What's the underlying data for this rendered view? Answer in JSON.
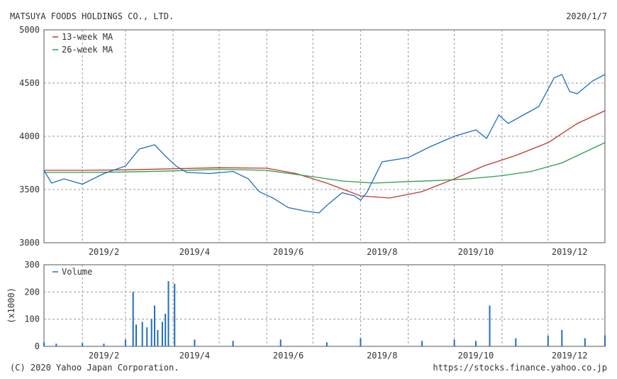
{
  "header": {
    "company": "MATSUYA FOODS HOLDINGS CO., LTD.",
    "date": "2020/1/7"
  },
  "footer": {
    "copyright": "(C) 2020 Yahoo Japan Corporation.",
    "source": "https://stocks.finance.yahoo.co.jp"
  },
  "colors": {
    "price": "#1f6fc0",
    "ma13": "#c0392b",
    "ma26": "#2e9e4f",
    "volume": "#1f6fc0",
    "grid": "#9a9a9a",
    "frame": "#555555"
  },
  "chart_data": [
    {
      "type": "line",
      "x_ticks": [
        "2019/2",
        "2019/4",
        "2019/6",
        "2019/8",
        "2019/10",
        "2019/12"
      ],
      "ylim": [
        3000,
        5000
      ],
      "y_ticks": [
        "5000",
        "4500",
        "4000",
        "3500",
        "3000"
      ],
      "grid": true,
      "legend_position": "top-left",
      "series": [
        {
          "name": "13-week MA",
          "x": [
            "2019/1/7",
            "2019/2/1",
            "2019/3/1",
            "2019/4/1",
            "2019/5/1",
            "2019/6/1",
            "2019/6/20",
            "2019/7/10",
            "2019/8/1",
            "2019/8/20",
            "2019/9/10",
            "2019/10/1",
            "2019/10/20",
            "2019/11/10",
            "2019/12/1",
            "2019/12/20",
            "2020/1/7"
          ],
          "values": [
            3680,
            3680,
            3685,
            3695,
            3705,
            3700,
            3650,
            3560,
            3440,
            3420,
            3480,
            3600,
            3720,
            3820,
            3940,
            4120,
            4240
          ]
        },
        {
          "name": "26-week MA",
          "x": [
            "2019/1/7",
            "2019/2/1",
            "2019/3/1",
            "2019/4/1",
            "2019/5/1",
            "2019/6/1",
            "2019/7/1",
            "2019/7/20",
            "2019/8/10",
            "2019/9/1",
            "2019/9/20",
            "2019/10/10",
            "2019/11/1",
            "2019/11/20",
            "2019/12/10",
            "2020/1/1",
            "2020/1/7"
          ],
          "values": [
            3660,
            3660,
            3665,
            3675,
            3690,
            3680,
            3620,
            3580,
            3560,
            3575,
            3585,
            3600,
            3630,
            3670,
            3750,
            3900,
            3940
          ]
        },
        {
          "x": [
            "2019/1/7",
            "2019/1/12",
            "2019/1/20",
            "2019/2/1",
            "2019/2/15",
            "2019/3/1",
            "2019/3/10",
            "2019/3/20",
            "2019/3/28",
            "2019/4/3",
            "2019/4/10",
            "2019/4/25",
            "2019/5/10",
            "2019/5/20",
            "2019/5/27",
            "2019/6/5",
            "2019/6/15",
            "2019/6/25",
            "2019/7/5",
            "2019/7/10",
            "2019/7/20",
            "2019/7/28",
            "2019/8/1",
            "2019/8/5",
            "2019/8/15",
            "2019/9/1",
            "2019/9/15",
            "2019/10/1",
            "2019/10/15",
            "2019/10/22",
            "2019/10/30",
            "2019/11/5",
            "2019/11/15",
            "2019/11/25",
            "2019/12/5",
            "2019/12/10",
            "2019/12/15",
            "2019/12/20",
            "2019/12/30",
            "2020/1/7"
          ],
          "values": [
            3680,
            3560,
            3600,
            3550,
            3650,
            3720,
            3880,
            3920,
            3800,
            3720,
            3660,
            3650,
            3670,
            3600,
            3480,
            3420,
            3330,
            3300,
            3280,
            3350,
            3470,
            3440,
            3400,
            3470,
            3760,
            3800,
            3900,
            4000,
            4060,
            3980,
            4200,
            4120,
            4200,
            4280,
            4550,
            4580,
            4420,
            4400,
            4520,
            4580
          ]
        }
      ]
    },
    {
      "type": "bar",
      "x_ticks": [
        "2019/2",
        "2019/4",
        "2019/6",
        "2019/8",
        "2019/10",
        "2019/12"
      ],
      "ylim": [
        0,
        300
      ],
      "y_ticks": [
        "300",
        "200",
        "100",
        "0"
      ],
      "ylabel": "(x1000)",
      "grid": true,
      "legend_position": "top-left",
      "series": [
        {
          "name": "Volume",
          "x": [
            "2019/1/7",
            "2019/1/15",
            "2019/2/1",
            "2019/2/15",
            "2019/3/1",
            "2019/3/6",
            "2019/3/8",
            "2019/3/12",
            "2019/3/15",
            "2019/3/18",
            "2019/3/20",
            "2019/3/22",
            "2019/3/25",
            "2019/3/27",
            "2019/3/29",
            "2019/4/2",
            "2019/4/15",
            "2019/5/10",
            "2019/6/10",
            "2019/7/10",
            "2019/8/1",
            "2019/9/10",
            "2019/10/1",
            "2019/10/15",
            "2019/10/24",
            "2019/11/10",
            "2019/12/1",
            "2019/12/10",
            "2019/12/25",
            "2020/1/7"
          ],
          "values": [
            15,
            10,
            12,
            10,
            25,
            200,
            80,
            90,
            70,
            100,
            150,
            60,
            90,
            120,
            240,
            230,
            25,
            20,
            25,
            15,
            30,
            20,
            25,
            20,
            150,
            30,
            40,
            60,
            30,
            40
          ]
        }
      ]
    }
  ]
}
